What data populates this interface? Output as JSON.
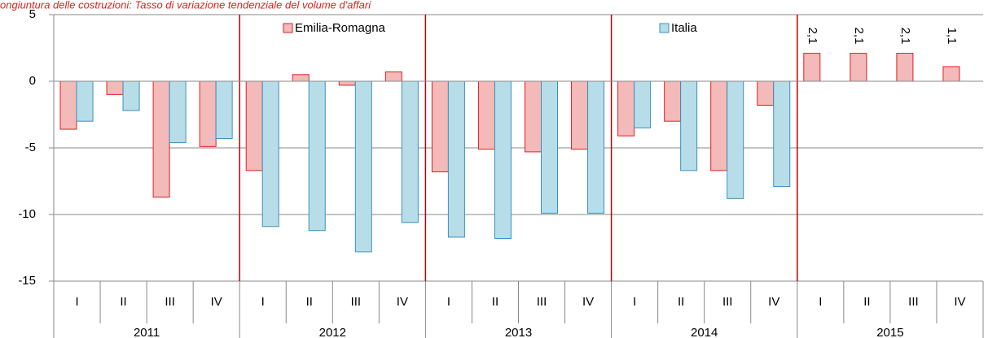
{
  "chart_data": {
    "type": "bar",
    "title": "ongiuntura delle costruzioni: Tasso di variazione tendenziale del volume d'affari",
    "categories": [
      "I",
      "II",
      "III",
      "IV",
      "I",
      "II",
      "III",
      "IV",
      "I",
      "II",
      "III",
      "IV",
      "I",
      "II",
      "III",
      "IV",
      "I",
      "II",
      "III",
      "IV"
    ],
    "years": [
      "2011",
      "2012",
      "2013",
      "2014",
      "2015"
    ],
    "series": [
      {
        "name": "Emilia-Romagna",
        "color": "#f4b9b9",
        "stroke": "#e02020",
        "values": [
          -3.6,
          -1.0,
          -8.7,
          -4.9,
          -6.7,
          0.5,
          -0.3,
          0.7,
          -6.8,
          -5.1,
          -5.3,
          -5.1,
          -4.1,
          -3.0,
          -6.7,
          -1.8,
          2.1,
          2.1,
          2.1,
          1.1
        ],
        "value_labels": [
          null,
          null,
          null,
          null,
          null,
          null,
          null,
          null,
          null,
          null,
          null,
          null,
          null,
          null,
          null,
          null,
          "2,1",
          "2,1",
          "2,1",
          "1,1"
        ]
      },
      {
        "name": "Italia",
        "color": "#b7dee8",
        "stroke": "#3a8fc0",
        "values": [
          -3.0,
          -2.2,
          -4.6,
          -4.3,
          -10.9,
          -11.2,
          -12.8,
          -10.6,
          -11.7,
          -11.8,
          -9.9,
          -9.9,
          -3.5,
          -6.7,
          -8.8,
          -7.9,
          null,
          null,
          null,
          null
        ]
      }
    ],
    "ylim": [
      -15,
      5
    ],
    "yticks": [
      -15,
      -10,
      -5,
      0,
      5
    ],
    "grid": true
  }
}
